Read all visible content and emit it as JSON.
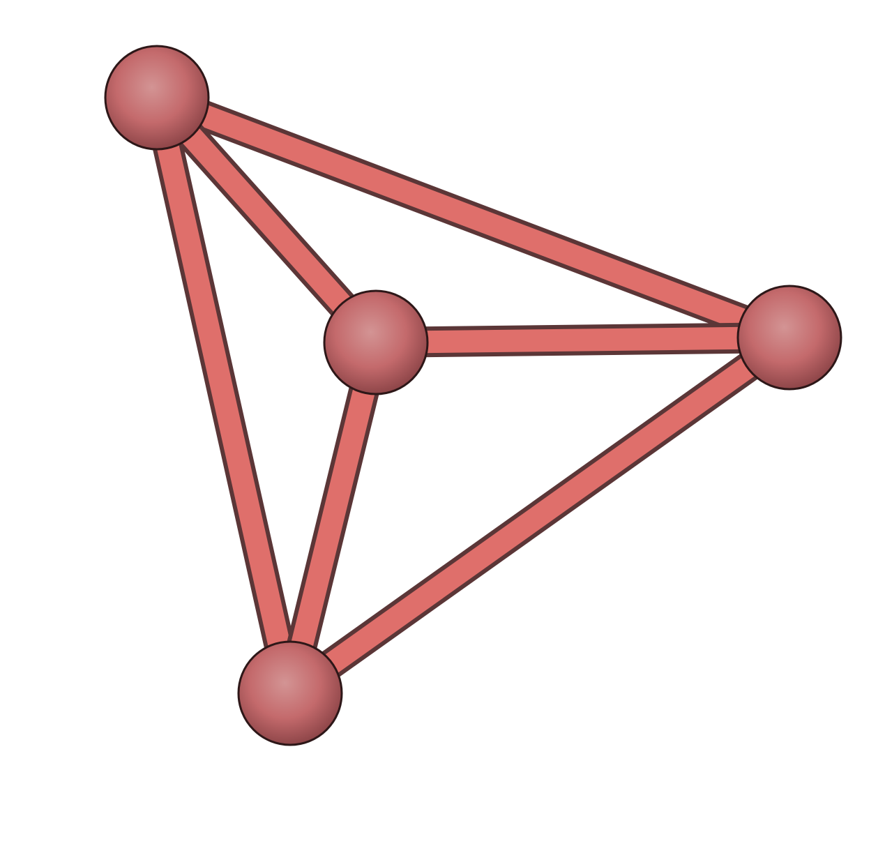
{
  "diagram": {
    "type": "graph",
    "structure": "tetrahedron",
    "nodes": [
      {
        "id": "top-left"
      },
      {
        "id": "center"
      },
      {
        "id": "right"
      },
      {
        "id": "bottom"
      }
    ],
    "edges": [
      {
        "from": "top-left",
        "to": "right"
      },
      {
        "from": "top-left",
        "to": "center"
      },
      {
        "from": "top-left",
        "to": "bottom"
      },
      {
        "from": "center",
        "to": "right"
      },
      {
        "from": "center",
        "to": "bottom"
      },
      {
        "from": "right",
        "to": "bottom"
      }
    ]
  },
  "colors": {
    "background": "#ffffff",
    "edge_fill": "#df6f6b",
    "edge_outline": "#5b3637",
    "node_fill_light": "#d39494",
    "node_fill_mid": "#c46a6c",
    "node_fill_dark": "#8a4346",
    "node_outline": "#2d1718"
  }
}
